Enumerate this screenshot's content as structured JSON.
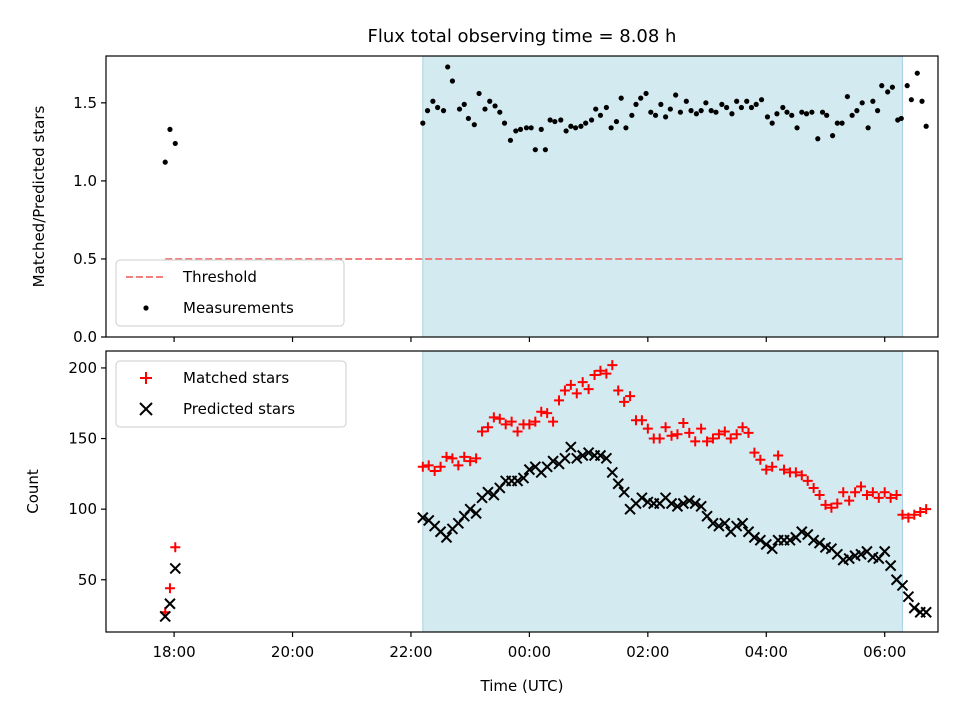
{
  "figure": {
    "title": "Flux total observing time = 8.08 h",
    "xlabel": "Time (UTC)",
    "x_ticks": [
      "18:00",
      "20:00",
      "22:00",
      "00:00",
      "02:00",
      "04:00",
      "06:00"
    ],
    "shade_color": "#d3eaf0",
    "shade_x_range": [
      22.2,
      30.3
    ]
  },
  "chart_data": [
    {
      "type": "scatter",
      "name": "ratio-panel",
      "ylabel": "Matched/Predicted stars",
      "xlim": [
        16.85,
        30.9
      ],
      "ylim": [
        0.0,
        1.8
      ],
      "y_ticks": [
        "0.0",
        "0.5",
        "1.0",
        "1.5"
      ],
      "y_tick_values": [
        0.0,
        0.5,
        1.0,
        1.5
      ],
      "legend": {
        "placement": "lower-left",
        "entries": [
          "Threshold",
          "Measurements"
        ]
      },
      "threshold": {
        "name": "Threshold",
        "value": 0.5,
        "x_range": [
          17.85,
          30.3
        ],
        "color": "#f08080"
      },
      "series": [
        {
          "name": "Measurements",
          "color": "#000000",
          "points": [
            [
              17.85,
              1.12
            ],
            [
              17.93,
              1.33
            ],
            [
              18.02,
              1.24
            ],
            [
              22.2,
              1.37
            ],
            [
              22.28,
              1.45
            ],
            [
              22.37,
              1.51
            ],
            [
              22.45,
              1.47
            ],
            [
              22.55,
              1.45
            ],
            [
              22.62,
              1.73
            ],
            [
              22.7,
              1.64
            ],
            [
              22.82,
              1.46
            ],
            [
              22.9,
              1.49
            ],
            [
              22.97,
              1.4
            ],
            [
              23.07,
              1.36
            ],
            [
              23.15,
              1.56
            ],
            [
              23.25,
              1.46
            ],
            [
              23.33,
              1.51
            ],
            [
              23.42,
              1.48
            ],
            [
              23.5,
              1.44
            ],
            [
              23.58,
              1.37
            ],
            [
              23.68,
              1.26
            ],
            [
              23.77,
              1.32
            ],
            [
              23.85,
              1.33
            ],
            [
              23.95,
              1.34
            ],
            [
              24.03,
              1.34
            ],
            [
              24.1,
              1.2
            ],
            [
              24.2,
              1.33
            ],
            [
              24.27,
              1.2
            ],
            [
              24.35,
              1.39
            ],
            [
              24.43,
              1.38
            ],
            [
              24.53,
              1.39
            ],
            [
              24.62,
              1.32
            ],
            [
              24.7,
              1.35
            ],
            [
              24.78,
              1.34
            ],
            [
              24.87,
              1.35
            ],
            [
              24.95,
              1.37
            ],
            [
              25.05,
              1.39
            ],
            [
              25.12,
              1.46
            ],
            [
              25.2,
              1.42
            ],
            [
              25.3,
              1.47
            ],
            [
              25.38,
              1.34
            ],
            [
              25.47,
              1.38
            ],
            [
              25.55,
              1.53
            ],
            [
              25.63,
              1.34
            ],
            [
              25.73,
              1.42
            ],
            [
              25.8,
              1.49
            ],
            [
              25.88,
              1.53
            ],
            [
              25.97,
              1.56
            ],
            [
              26.05,
              1.44
            ],
            [
              26.13,
              1.42
            ],
            [
              26.22,
              1.49
            ],
            [
              26.3,
              1.41
            ],
            [
              26.38,
              1.46
            ],
            [
              26.47,
              1.55
            ],
            [
              26.55,
              1.44
            ],
            [
              26.65,
              1.51
            ],
            [
              26.73,
              1.45
            ],
            [
              26.82,
              1.43
            ],
            [
              26.9,
              1.45
            ],
            [
              26.98,
              1.5
            ],
            [
              27.07,
              1.45
            ],
            [
              27.15,
              1.44
            ],
            [
              27.25,
              1.49
            ],
            [
              27.33,
              1.47
            ],
            [
              27.42,
              1.43
            ],
            [
              27.5,
              1.51
            ],
            [
              27.58,
              1.47
            ],
            [
              27.67,
              1.51
            ],
            [
              27.75,
              1.47
            ],
            [
              27.83,
              1.49
            ],
            [
              27.92,
              1.52
            ],
            [
              28.02,
              1.41
            ],
            [
              28.1,
              1.37
            ],
            [
              28.18,
              1.43
            ],
            [
              28.28,
              1.47
            ],
            [
              28.35,
              1.44
            ],
            [
              28.43,
              1.42
            ],
            [
              28.52,
              1.34
            ],
            [
              28.6,
              1.44
            ],
            [
              28.68,
              1.43
            ],
            [
              28.77,
              1.44
            ],
            [
              28.87,
              1.27
            ],
            [
              28.95,
              1.44
            ],
            [
              29.02,
              1.42
            ],
            [
              29.12,
              1.29
            ],
            [
              29.2,
              1.37
            ],
            [
              29.28,
              1.37
            ],
            [
              29.37,
              1.54
            ],
            [
              29.45,
              1.42
            ],
            [
              29.53,
              1.45
            ],
            [
              29.62,
              1.5
            ],
            [
              29.72,
              1.34
            ],
            [
              29.8,
              1.51
            ],
            [
              29.88,
              1.45
            ],
            [
              29.95,
              1.61
            ],
            [
              30.05,
              1.57
            ],
            [
              30.13,
              1.6
            ],
            [
              30.22,
              1.39
            ],
            [
              30.28,
              1.4
            ],
            [
              30.38,
              1.61
            ],
            [
              30.45,
              1.52
            ],
            [
              30.55,
              1.69
            ],
            [
              30.63,
              1.51
            ],
            [
              30.7,
              1.35
            ]
          ]
        }
      ]
    },
    {
      "type": "scatter",
      "name": "count-panel",
      "ylabel": "Count",
      "xlim": [
        16.85,
        30.9
      ],
      "ylim": [
        13,
        212
      ],
      "y_ticks": [
        "50",
        "100",
        "150",
        "200"
      ],
      "y_tick_values": [
        50,
        100,
        150,
        200
      ],
      "legend": {
        "placement": "upper-left",
        "entries": [
          "Matched stars",
          "Predicted stars"
        ]
      },
      "series": [
        {
          "name": "Matched stars",
          "color": "#ff0000",
          "marker": "plus",
          "x": [
            17.85,
            17.93,
            18.02,
            22.2,
            22.3,
            22.4,
            22.5,
            22.6,
            22.7,
            22.8,
            22.9,
            23.0,
            23.1,
            23.2,
            23.3,
            23.4,
            23.5,
            23.6,
            23.7,
            23.8,
            23.9,
            24.0,
            24.1,
            24.2,
            24.3,
            24.4,
            24.5,
            24.6,
            24.7,
            24.8,
            24.9,
            25.0,
            25.1,
            25.2,
            25.3,
            25.4,
            25.5,
            25.6,
            25.7,
            25.8,
            25.9,
            26.0,
            26.1,
            26.2,
            26.3,
            26.4,
            26.5,
            26.6,
            26.7,
            26.8,
            26.9,
            27.0,
            27.1,
            27.2,
            27.3,
            27.4,
            27.5,
            27.6,
            27.7,
            27.8,
            27.9,
            28.0,
            28.1,
            28.2,
            28.3,
            28.4,
            28.5,
            28.6,
            28.7,
            28.8,
            28.9,
            29.0,
            29.1,
            29.2,
            29.3,
            29.4,
            29.5,
            29.6,
            29.7,
            29.8,
            29.9,
            30.0,
            30.1,
            30.2,
            30.3,
            30.4,
            30.5,
            30.6,
            30.7
          ],
          "values": [
            27,
            44,
            73,
            130,
            131,
            127,
            130,
            137,
            136,
            131,
            137,
            134,
            136,
            155,
            158,
            165,
            164,
            160,
            162,
            155,
            160,
            160,
            162,
            169,
            168,
            162,
            177,
            184,
            188,
            182,
            190,
            185,
            195,
            198,
            196,
            202,
            184,
            176,
            180,
            163,
            163,
            157,
            150,
            150,
            158,
            152,
            153,
            161,
            154,
            148,
            157,
            148,
            150,
            153,
            155,
            150,
            153,
            158,
            154,
            140,
            135,
            128,
            130,
            138,
            128,
            126,
            126,
            124,
            120,
            115,
            110,
            103,
            101,
            104,
            112,
            106,
            112,
            116,
            110,
            112,
            108,
            112,
            108,
            110,
            96,
            94,
            96,
            98,
            100
          ]
        },
        {
          "name": "Predicted stars",
          "color": "#000000",
          "marker": "x",
          "x": [
            17.85,
            17.93,
            18.02,
            22.2,
            22.3,
            22.4,
            22.5,
            22.6,
            22.7,
            22.8,
            22.9,
            23.0,
            23.1,
            23.2,
            23.3,
            23.4,
            23.5,
            23.6,
            23.7,
            23.8,
            23.9,
            24.0,
            24.1,
            24.2,
            24.3,
            24.4,
            24.5,
            24.6,
            24.7,
            24.8,
            24.9,
            25.0,
            25.1,
            25.2,
            25.3,
            25.4,
            25.5,
            25.6,
            25.7,
            25.8,
            25.9,
            26.0,
            26.1,
            26.2,
            26.3,
            26.4,
            26.5,
            26.6,
            26.7,
            26.8,
            26.9,
            27.0,
            27.1,
            27.2,
            27.3,
            27.4,
            27.5,
            27.6,
            27.7,
            27.8,
            27.9,
            28.0,
            28.1,
            28.2,
            28.3,
            28.4,
            28.5,
            28.6,
            28.7,
            28.8,
            28.9,
            29.0,
            29.1,
            29.2,
            29.3,
            29.4,
            29.5,
            29.6,
            29.7,
            29.8,
            29.9,
            30.0,
            30.1,
            30.2,
            30.3,
            30.4,
            30.5,
            30.6,
            30.7
          ],
          "values": [
            24,
            33,
            58,
            94,
            92,
            88,
            84,
            80,
            86,
            90,
            95,
            100,
            97,
            108,
            112,
            110,
            115,
            120,
            120,
            120,
            122,
            128,
            130,
            126,
            130,
            134,
            132,
            136,
            144,
            136,
            138,
            140,
            138,
            138,
            136,
            126,
            118,
            112,
            100,
            104,
            108,
            105,
            104,
            104,
            108,
            104,
            102,
            104,
            106,
            104,
            102,
            95,
            90,
            88,
            90,
            84,
            88,
            90,
            84,
            80,
            78,
            75,
            72,
            78,
            78,
            78,
            80,
            84,
            82,
            78,
            76,
            73,
            72,
            68,
            64,
            65,
            67,
            68,
            70,
            66,
            65,
            70,
            60,
            50,
            46,
            38,
            30,
            27,
            27
          ]
        }
      ]
    }
  ]
}
